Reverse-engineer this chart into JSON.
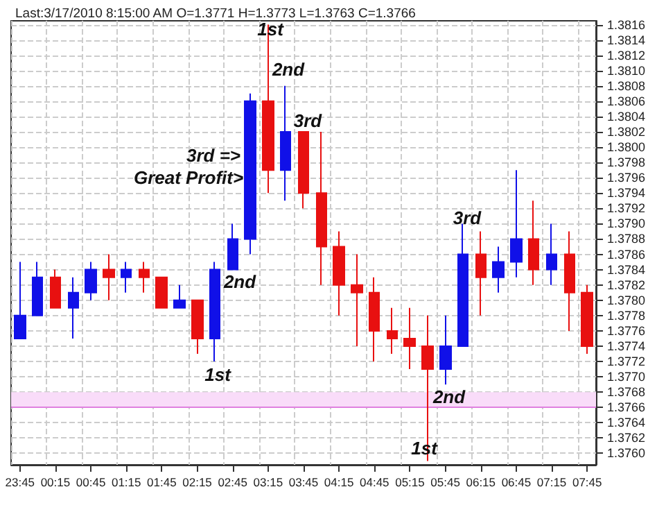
{
  "chart_data": {
    "type": "candlestick",
    "title": "Last:3/17/2010 8:15:00 AM O=1.3771 H=1.3773 L=1.3763 C=1.3766",
    "categories": [
      "23:45",
      null,
      "00:15",
      null,
      "00:45",
      null,
      "01:15",
      null,
      "01:45",
      null,
      "02:15",
      null,
      "02:45",
      null,
      "03:15",
      null,
      "03:45",
      null,
      "04:15",
      null,
      "04:45",
      null,
      "05:15",
      null,
      "05:45",
      null,
      "06:15",
      null,
      "06:45",
      null,
      "07:15",
      null,
      "07:45"
    ],
    "ohlc": [
      [
        1.3775,
        1.3785,
        1.3775,
        1.3778
      ],
      [
        1.3778,
        1.3785,
        1.3778,
        1.3783
      ],
      [
        1.3783,
        1.3784,
        1.3779,
        1.3779
      ],
      [
        1.3779,
        1.3783,
        1.3775,
        1.3781
      ],
      [
        1.3781,
        1.3785,
        1.378,
        1.3784
      ],
      [
        1.3784,
        1.3786,
        1.378,
        1.3783
      ],
      [
        1.3783,
        1.3785,
        1.3781,
        1.3784
      ],
      [
        1.3784,
        1.3785,
        1.3781,
        1.3783
      ],
      [
        1.3783,
        1.3783,
        1.3779,
        1.3779
      ],
      [
        1.3779,
        1.3782,
        1.3779,
        1.378
      ],
      [
        1.378,
        1.378,
        1.3773,
        1.3775
      ],
      [
        1.3775,
        1.3785,
        1.3772,
        1.3784
      ],
      [
        1.3784,
        1.379,
        1.3784,
        1.3788
      ],
      [
        1.3788,
        1.3807,
        1.3786,
        1.3806
      ],
      [
        1.3806,
        1.3816,
        1.3794,
        1.3797
      ],
      [
        1.3797,
        1.3808,
        1.3793,
        1.3802
      ],
      [
        1.3802,
        1.3802,
        1.3792,
        1.3794
      ],
      [
        1.3794,
        1.3802,
        1.3782,
        1.3787
      ],
      [
        1.3787,
        1.3789,
        1.3778,
        1.3782
      ],
      [
        1.3782,
        1.3786,
        1.3774,
        1.3781
      ],
      [
        1.3781,
        1.3783,
        1.3772,
        1.3776
      ],
      [
        1.3776,
        1.3779,
        1.3773,
        1.3775
      ],
      [
        1.3775,
        1.3779,
        1.3771,
        1.3774
      ],
      [
        1.3774,
        1.3778,
        1.3759,
        1.3771
      ],
      [
        1.3771,
        1.3778,
        1.3769,
        1.3774
      ],
      [
        1.3774,
        1.379,
        1.3774,
        1.3786
      ],
      [
        1.3786,
        1.3789,
        1.3778,
        1.3783
      ],
      [
        1.3783,
        1.3787,
        1.3781,
        1.3785
      ],
      [
        1.3785,
        1.3797,
        1.3783,
        1.3788
      ],
      [
        1.3788,
        1.3793,
        1.3782,
        1.3784
      ],
      [
        1.3784,
        1.379,
        1.3782,
        1.3786
      ],
      [
        1.3786,
        1.3789,
        1.3776,
        1.3781
      ],
      [
        1.3781,
        1.3782,
        1.3773,
        1.3774
      ]
    ],
    "colors": [
      "#1010e8",
      "#1010e8",
      "#e81010",
      "#1010e8",
      "#1010e8",
      "#e81010",
      "#1010e8",
      "#e81010",
      "#e81010",
      "#1010e8",
      "#e81010",
      "#1010e8",
      "#1010e8",
      "#1010e8",
      "#e81010",
      "#1010e8",
      "#e81010",
      "#e81010",
      "#e81010",
      "#e81010",
      "#e81010",
      "#e81010",
      "#e81010",
      "#e81010",
      "#1010e8",
      "#1010e8",
      "#e81010",
      "#1010e8",
      "#1010e8",
      "#e81010",
      "#1010e8",
      "#e81010",
      "#e81010"
    ],
    "ylim": [
      1.37585,
      1.38165
    ],
    "yticks": [
      {
        "value": 1.376,
        "label": "1.3760"
      },
      1.3762,
      1.3764,
      1.3766,
      1.3768,
      {
        "value": 1.377,
        "label": "1.3770"
      },
      1.3772,
      1.3774,
      1.3776,
      1.3778,
      {
        "value": 1.378,
        "label": "1.3780"
      },
      1.3782,
      1.3784,
      1.3786,
      1.3788,
      {
        "value": 1.379,
        "label": "1.3790"
      },
      1.3792,
      1.3794,
      1.3796,
      1.3798,
      {
        "value": 1.38,
        "label": "1.3800"
      },
      1.3802,
      1.3804,
      1.3806,
      1.3808,
      {
        "value": 1.381,
        "label": "1.3810"
      },
      1.3812,
      1.3814,
      1.3816
    ],
    "grid": true,
    "bands": [
      {
        "axis": "y",
        "from": 1.3766,
        "to": 1.3768,
        "color": "#f9dcf9"
      }
    ],
    "ref_lines": [
      {
        "axis": "y",
        "value": 1.3766,
        "color": "#e080e0"
      }
    ],
    "annotations": [
      "1st",
      "2nd",
      "3rd",
      "3rd =>",
      "Great Profit>",
      "2nd",
      "1st",
      "3rd",
      "2nd",
      "1st"
    ]
  }
}
